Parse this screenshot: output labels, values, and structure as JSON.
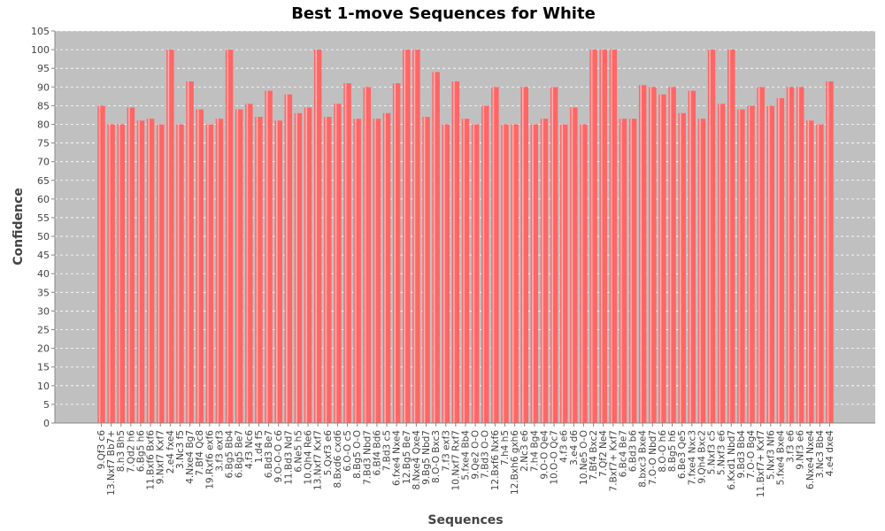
{
  "chart_data": {
    "type": "bar",
    "title": "Best 1-move Sequences for White",
    "xlabel": "Sequences",
    "ylabel": "Confidence",
    "ylim": [
      0,
      105
    ],
    "yticks": [
      0,
      5,
      10,
      15,
      20,
      25,
      30,
      35,
      40,
      45,
      50,
      55,
      60,
      65,
      70,
      75,
      80,
      85,
      90,
      95,
      100,
      105
    ],
    "grid": true,
    "legend": "none",
    "colors": {
      "bar": "#ff6666",
      "plot_background": "#c0c0c0",
      "grid": "#ffffff"
    },
    "categories": [
      "9.Qf3 c6",
      "13.Nxf7 Bb7+",
      "8.h3 Bh5",
      "7.Qd2 h6",
      "6.Bg5 h6",
      "11.Bxf6 Bxf6",
      "9.Nxf7 Kxf7",
      "2.e4 fxe4",
      "3.Nc3 f5",
      "4.Nxe4 Bg7",
      "7.Bf4 Qc8",
      "19.Rxf6 exf6",
      "3.f3 exf3",
      "6.Bg5 Bb4",
      "6.Bg5 Be7",
      "4.f3 Nc6",
      "1.d4 f5",
      "6.Bd3 Be7",
      "9.O-O-O c6",
      "11.Bd3 Nd7",
      "6.Ne5 h5",
      "10.Qh4 Re6",
      "13.Nxf7 Kxf7",
      "5.Qxf3 e6",
      "8.Bxd6 cxd6",
      "6.O-O c5",
      "8.Bg5 O-O",
      "7.Bd3 Nbd7",
      "6.Bf4 Bd6",
      "7.Bd3 c5",
      "6.fxe4 Nxe4",
      "12.Bg5 Be7",
      "8.Nxe4 Qxe4",
      "9.Bg5 Nbd7",
      "8.O-O Bxc3",
      "7.f3 exf3",
      "10.Nxf7 Rxf7",
      "5.fxe4 Bb4",
      "9.Qe2 O-O",
      "7.Bd3 O-O",
      "12.Bxf6 Nxf6",
      "7.h4 h5",
      "12.Bxh6 gxh6",
      "2.Nc3 e6",
      "7.h4 Bg4",
      "9.O-O Qe4",
      "10.O-O Qc7",
      "4.f3 e6",
      "3.e4 d6",
      "10.Ne5 O-O",
      "7.Bf4 Bxc2",
      "7.Qf2 Ne4",
      "7.Bxf7+ Kxf7",
      "6.Bc4 Be7",
      "6.Bd3 b6",
      "8.bxc3 Bxe4",
      "7.O-O Nbd7",
      "8.O-O h6",
      "8.Bg5 h6",
      "6.Be3 Qe5",
      "7.fxe4 Nxc3",
      "9.Qh4 Bxc2",
      "5.Nxf3 c5",
      "5.Nxf3 e6",
      "6.Kxd1 Nbd7",
      "9.Bd3 Bb4",
      "7.O-O Bg4",
      "11.Bxf7+ Kxf7",
      "5.Nxf3 Nf6",
      "5.fxe4 Bxe4",
      "3.f3 e6",
      "9.Nf3 e6",
      "6.Nxe4 Nxe4",
      "3.Nc3 Bb4",
      "4.e4 dxe4"
    ],
    "values": [
      85,
      80,
      80,
      84.5,
      81,
      81.5,
      80,
      100,
      80,
      91.5,
      84,
      80,
      81.5,
      100,
      84,
      85.5,
      82,
      89,
      81,
      88,
      83,
      84.5,
      100,
      82,
      85.5,
      91,
      81.5,
      90,
      81.5,
      83,
      91,
      100,
      100,
      82,
      94,
      80,
      91.5,
      81.5,
      80,
      85,
      90,
      80,
      80,
      90,
      80,
      81.5,
      90,
      80,
      84.5,
      80,
      100,
      100,
      100,
      81.5,
      81.5,
      90.5,
      90,
      88,
      90,
      83,
      89,
      81.5,
      100,
      85.5,
      100,
      84,
      85,
      90,
      85,
      87,
      90,
      90,
      81,
      80,
      91.5
    ]
  }
}
